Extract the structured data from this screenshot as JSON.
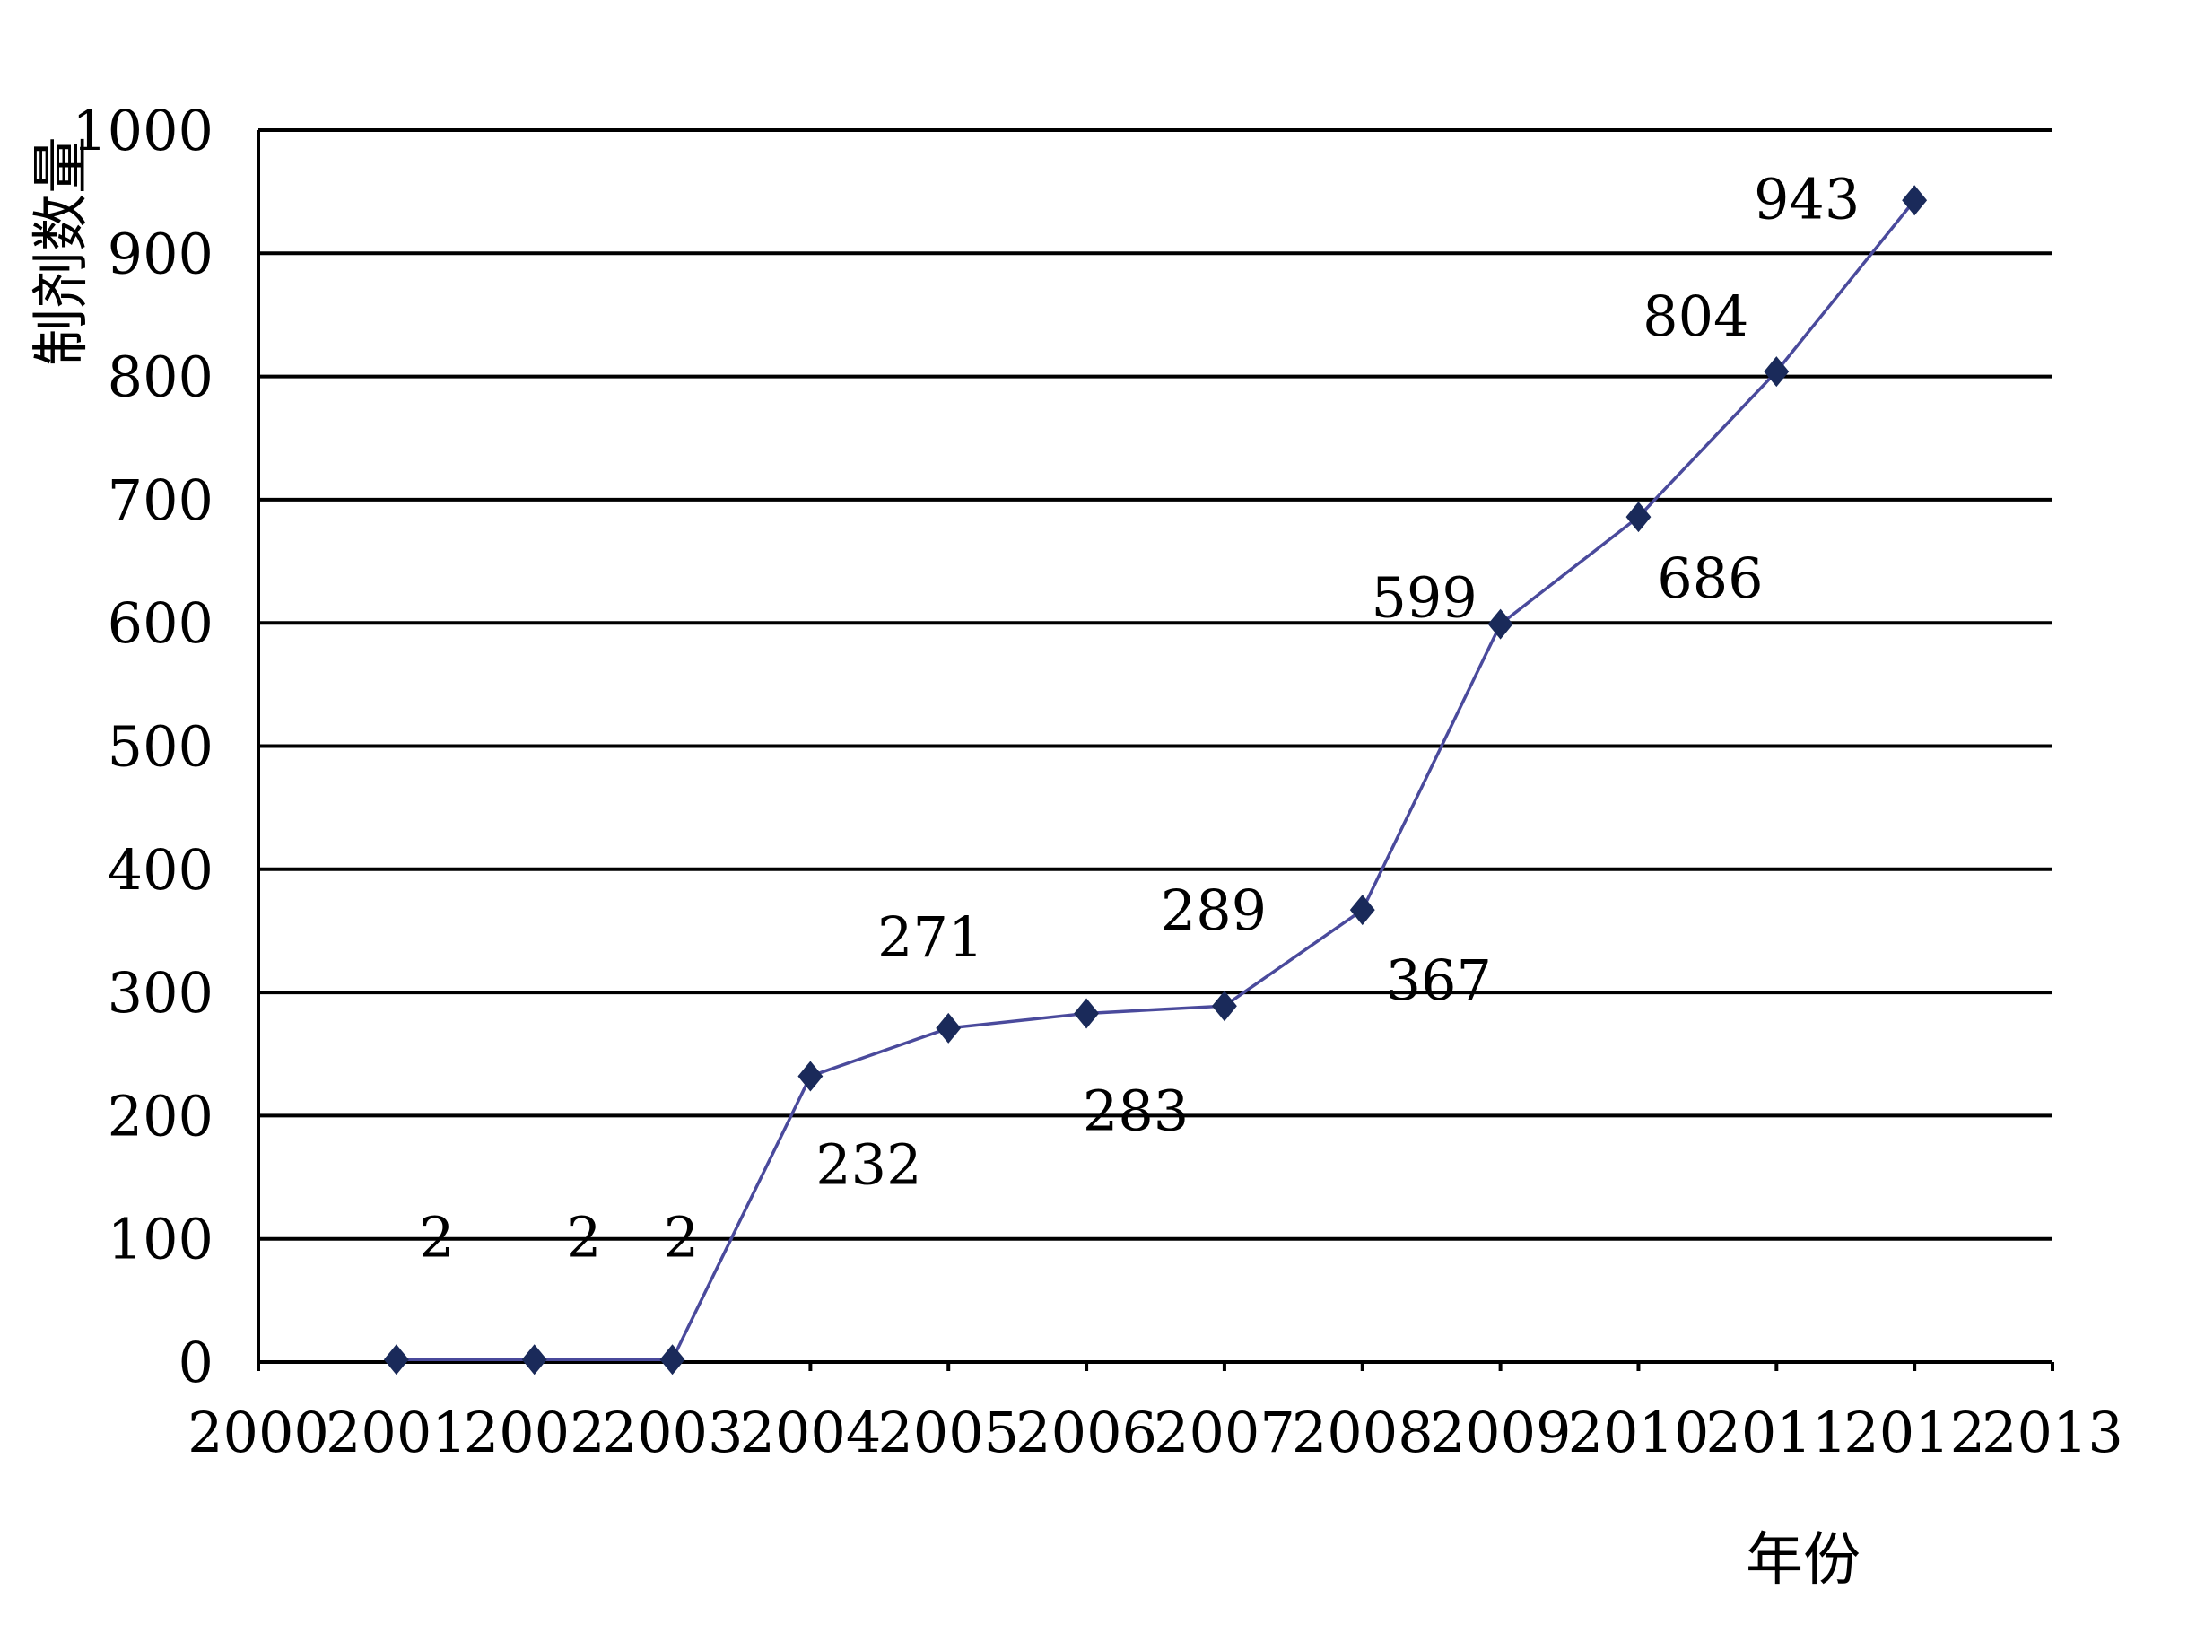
{
  "chart_data": {
    "type": "line",
    "title": "",
    "xlabel": "年份",
    "ylabel": "制剂数量",
    "xlim": [
      2000,
      2013
    ],
    "ylim": [
      0,
      1000
    ],
    "x_ticks": [
      2000,
      2001,
      2002,
      2003,
      2004,
      2005,
      2006,
      2007,
      2008,
      2009,
      2010,
      2011,
      2012,
      2013
    ],
    "y_ticks": [
      0,
      100,
      200,
      300,
      400,
      500,
      600,
      700,
      800,
      900,
      1000
    ],
    "grid": true,
    "legend": "none",
    "series": [
      {
        "color": "#4a4a9c",
        "marker": "diamond",
        "marker_color": "#1a2a5a",
        "x": [
          2001,
          2002,
          2003,
          2004,
          2005,
          2006,
          2007,
          2008,
          2009,
          2010,
          2011,
          2012
        ],
        "values": [
          2,
          2,
          2,
          232,
          271,
          283,
          289,
          367,
          599,
          686,
          804,
          943
        ]
      }
    ],
    "annotations": [
      {
        "x": 2001,
        "value": 2,
        "text": "2",
        "pos": "above"
      },
      {
        "x": 2002,
        "value": 2,
        "text": "2",
        "pos": "above"
      },
      {
        "x": 2003,
        "value": 2,
        "text": "2",
        "pos": "above"
      },
      {
        "x": 2004,
        "value": 232,
        "text": "232",
        "pos": "below"
      },
      {
        "x": 2005,
        "value": 271,
        "text": "271",
        "pos": "above"
      },
      {
        "x": 2006,
        "value": 283,
        "text": "283",
        "pos": "below"
      },
      {
        "x": 2007,
        "value": 289,
        "text": "289",
        "pos": "above"
      },
      {
        "x": 2008,
        "value": 367,
        "text": "367",
        "pos": "below"
      },
      {
        "x": 2009,
        "value": 599,
        "text": "599",
        "pos": "above"
      },
      {
        "x": 2010,
        "value": 686,
        "text": "686",
        "pos": "below"
      },
      {
        "x": 2011,
        "value": 804,
        "text": "804",
        "pos": "above"
      },
      {
        "x": 2012,
        "value": 943,
        "text": "943",
        "pos": "above"
      }
    ]
  }
}
